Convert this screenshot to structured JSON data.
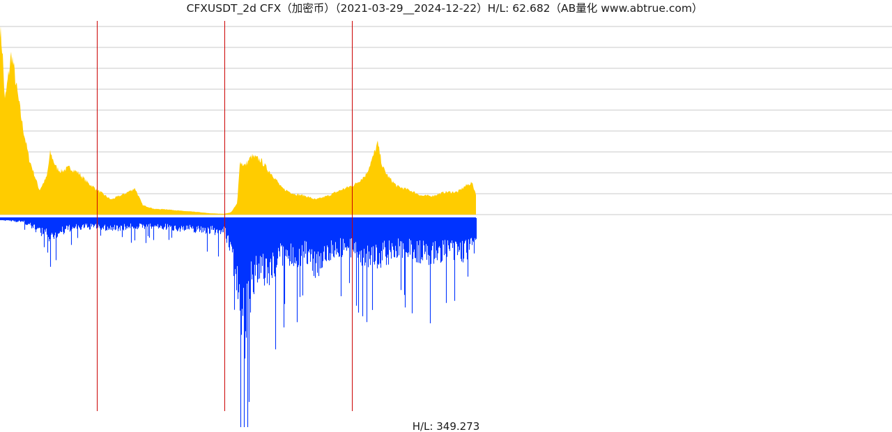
{
  "chart_data": {
    "type": "area",
    "title": "CFXUSDT_2d CFX（加密币）（2021-03-29__2024-12-22）H/L: 62.682（AB量化  www.abtrue.com）",
    "footer_label": "H/L: 349.273",
    "x_range": [
      "2021-03-29",
      "2024-12-22"
    ],
    "year_markers": [
      "2022-01-01",
      "2023-01-01",
      "2024-01-01"
    ],
    "price_panel": {
      "ylim": [
        0,
        1
      ],
      "hl_ratio": 62.682,
      "gridlines": 10,
      "color": "#FFCC00",
      "x": [
        "2021-03-29",
        "2021-04-05",
        "2021-04-12",
        "2021-05-01",
        "2021-05-15",
        "2021-06-01",
        "2021-06-20",
        "2021-07-20",
        "2021-08-10",
        "2021-08-20",
        "2021-09-06",
        "2021-09-20",
        "2021-10-15",
        "2021-11-10",
        "2021-12-05",
        "2022-01-10",
        "2022-02-10",
        "2022-03-20",
        "2022-04-20",
        "2022-05-12",
        "2022-06-15",
        "2022-07-20",
        "2022-08-30",
        "2022-10-15",
        "2022-11-20",
        "2022-12-31",
        "2023-01-20",
        "2023-02-07",
        "2023-02-14",
        "2023-03-01",
        "2023-03-20",
        "2023-04-15",
        "2023-05-05",
        "2023-05-20",
        "2023-06-15",
        "2023-07-20",
        "2023-08-20",
        "2023-09-20",
        "2023-10-25",
        "2023-11-30",
        "2024-01-10",
        "2024-02-10",
        "2024-03-01",
        "2024-03-15",
        "2024-03-30",
        "2024-04-15",
        "2024-05-10",
        "2024-06-15",
        "2024-07-20",
        "2024-08-20",
        "2024-09-25",
        "2024-10-30",
        "2024-11-20",
        "2024-12-10",
        "2024-12-22"
      ],
      "y": [
        1.0,
        0.87,
        0.6,
        0.86,
        0.68,
        0.48,
        0.3,
        0.13,
        0.2,
        0.33,
        0.25,
        0.23,
        0.25,
        0.22,
        0.17,
        0.12,
        0.08,
        0.11,
        0.14,
        0.05,
        0.03,
        0.028,
        0.02,
        0.014,
        0.007,
        0.004,
        0.012,
        0.06,
        0.28,
        0.26,
        0.31,
        0.29,
        0.24,
        0.21,
        0.14,
        0.11,
        0.1,
        0.08,
        0.1,
        0.13,
        0.16,
        0.21,
        0.3,
        0.38,
        0.25,
        0.2,
        0.15,
        0.13,
        0.1,
        0.1,
        0.12,
        0.12,
        0.15,
        0.17,
        0.11
      ]
    },
    "volume_panel": {
      "ylim": [
        0,
        1
      ],
      "color": "#0033FF",
      "x": [
        "2021-03-29",
        "2021-06-01",
        "2021-08-20",
        "2021-10-15",
        "2021-12-15",
        "2022-02-10",
        "2022-04-15",
        "2022-06-20",
        "2022-08-30",
        "2022-11-10",
        "2022-12-31",
        "2023-01-15",
        "2023-02-10",
        "2023-02-25",
        "2023-03-15",
        "2023-04-01",
        "2023-04-20",
        "2023-05-10",
        "2023-06-10",
        "2023-07-10",
        "2023-08-15",
        "2023-09-20",
        "2023-10-30",
        "2023-12-10",
        "2024-01-20",
        "2024-03-01",
        "2024-04-10",
        "2024-05-20",
        "2024-07-01",
        "2024-08-10",
        "2024-09-20",
        "2024-11-01",
        "2024-12-22"
      ],
      "y": [
        0.01,
        0.02,
        0.11,
        0.06,
        0.05,
        0.06,
        0.05,
        0.05,
        0.06,
        0.07,
        0.08,
        0.15,
        0.38,
        0.68,
        0.42,
        0.35,
        0.3,
        0.32,
        0.22,
        0.24,
        0.2,
        0.27,
        0.19,
        0.17,
        0.2,
        0.24,
        0.21,
        0.18,
        0.2,
        0.22,
        0.19,
        0.21,
        0.16
      ]
    }
  }
}
